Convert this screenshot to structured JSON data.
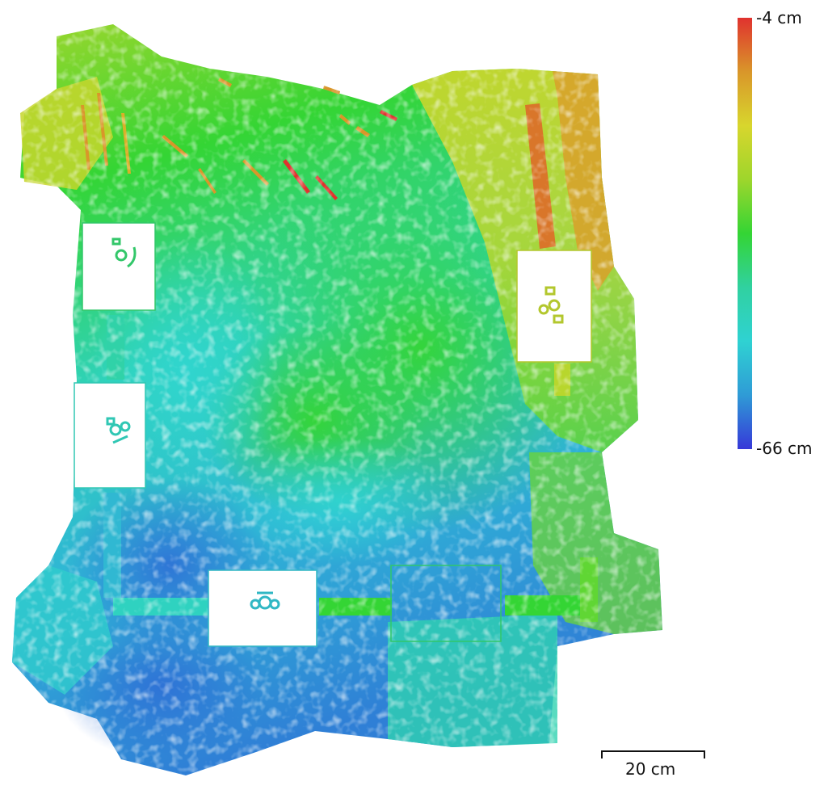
{
  "colorbar": {
    "max_label": "-4 cm",
    "min_label": "-66 cm",
    "colors": [
      "#e0322e",
      "#d9962a",
      "#d8d62d",
      "#9ed62c",
      "#34d534",
      "#30d1a0",
      "#2fd2d2",
      "#2f9bd6",
      "#3638d8"
    ]
  },
  "scalebar": {
    "label": "20 cm"
  },
  "map": {
    "background": "#ffffff"
  }
}
